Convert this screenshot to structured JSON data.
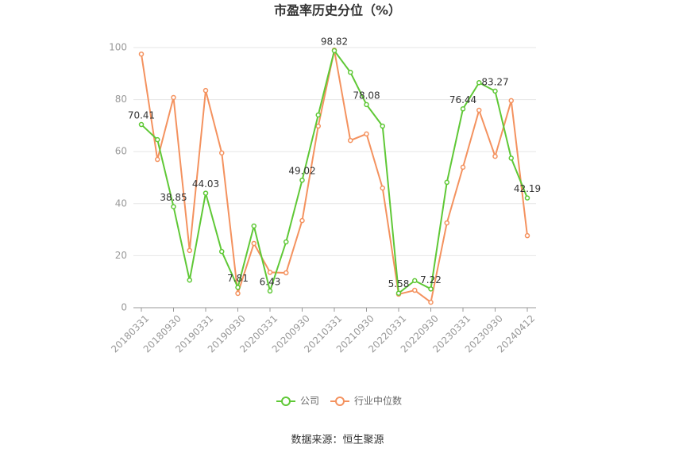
{
  "chart_data": {
    "type": "line",
    "title": "市盈率历史分位（%）",
    "source": "数据来源：恒生聚源",
    "categories": [
      "20180331",
      null,
      "20180930",
      null,
      "20190331",
      null,
      "20190930",
      null,
      "20200331",
      null,
      "20200930",
      null,
      "20210331",
      null,
      "20210930",
      null,
      "20220331",
      null,
      "20220930",
      null,
      "20230331",
      null,
      "20230930",
      null,
      "20240412"
    ],
    "series": [
      {
        "name": "公司",
        "color": "#5fc836",
        "values": [
          70.41,
          64.6,
          38.85,
          10.6,
          44.03,
          21.6,
          7.81,
          31.4,
          6.43,
          25.3,
          49.02,
          74.1,
          98.82,
          90.5,
          78.08,
          69.8,
          5.58,
          10.4,
          7.22,
          48.2,
          76.44,
          86.5,
          83.27,
          57.5,
          42.19
        ],
        "value_labels": [
          "70.41",
          null,
          "38.85",
          null,
          "44.03",
          null,
          "7.81",
          null,
          "6.43",
          null,
          "49.02",
          null,
          "98.82",
          null,
          "78.08",
          null,
          "5.58",
          null,
          "7.22",
          null,
          "76.44",
          null,
          "83.27",
          null,
          "42.19"
        ]
      },
      {
        "name": "行业中位数",
        "color": "#f4925f",
        "values": [
          97.5,
          57,
          80.8,
          22,
          83.5,
          59.5,
          5.5,
          24.7,
          13.6,
          13.4,
          33.5,
          69.8,
          99,
          64.3,
          66.8,
          46,
          5.2,
          6.7,
          2.1,
          32.6,
          54,
          75.9,
          58.2,
          79.6,
          27.7
        ]
      }
    ],
    "ylim": [
      0,
      100
    ],
    "yticks": [
      0,
      20,
      40,
      60,
      80,
      100
    ],
    "grid": true
  }
}
